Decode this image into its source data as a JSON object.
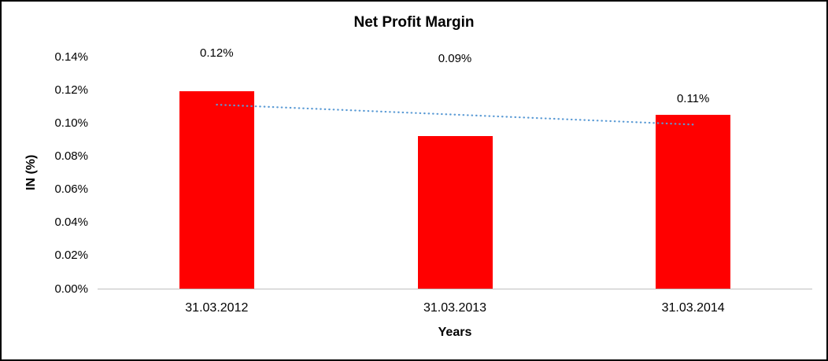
{
  "chart_data": {
    "type": "bar",
    "title": "Net Profit Margin",
    "xlabel": "Years",
    "ylabel": "IN (%)",
    "categories": [
      "31.03.2012",
      "31.03.2013",
      "31.03.2014"
    ],
    "values": [
      0.119,
      0.092,
      0.105
    ],
    "data_labels": [
      "0.12%",
      "0.09%",
      "0.11%"
    ],
    "ylim": [
      0,
      0.14
    ],
    "ytick_step": 0.02,
    "ytick_labels": [
      "0.00%",
      "0.02%",
      "0.04%",
      "0.06%",
      "0.08%",
      "0.10%",
      "0.12%",
      "0.14%"
    ],
    "grid": false,
    "legend": "none",
    "bar_color": "#FF0000",
    "axis_line_color": "#BFBFBF",
    "text_color": "#000000",
    "trendline": {
      "style": "dotted",
      "color": "#5B9BD5",
      "start_value": 0.111,
      "end_value": 0.099
    },
    "label_offsets": [
      49,
      99,
      20
    ]
  }
}
